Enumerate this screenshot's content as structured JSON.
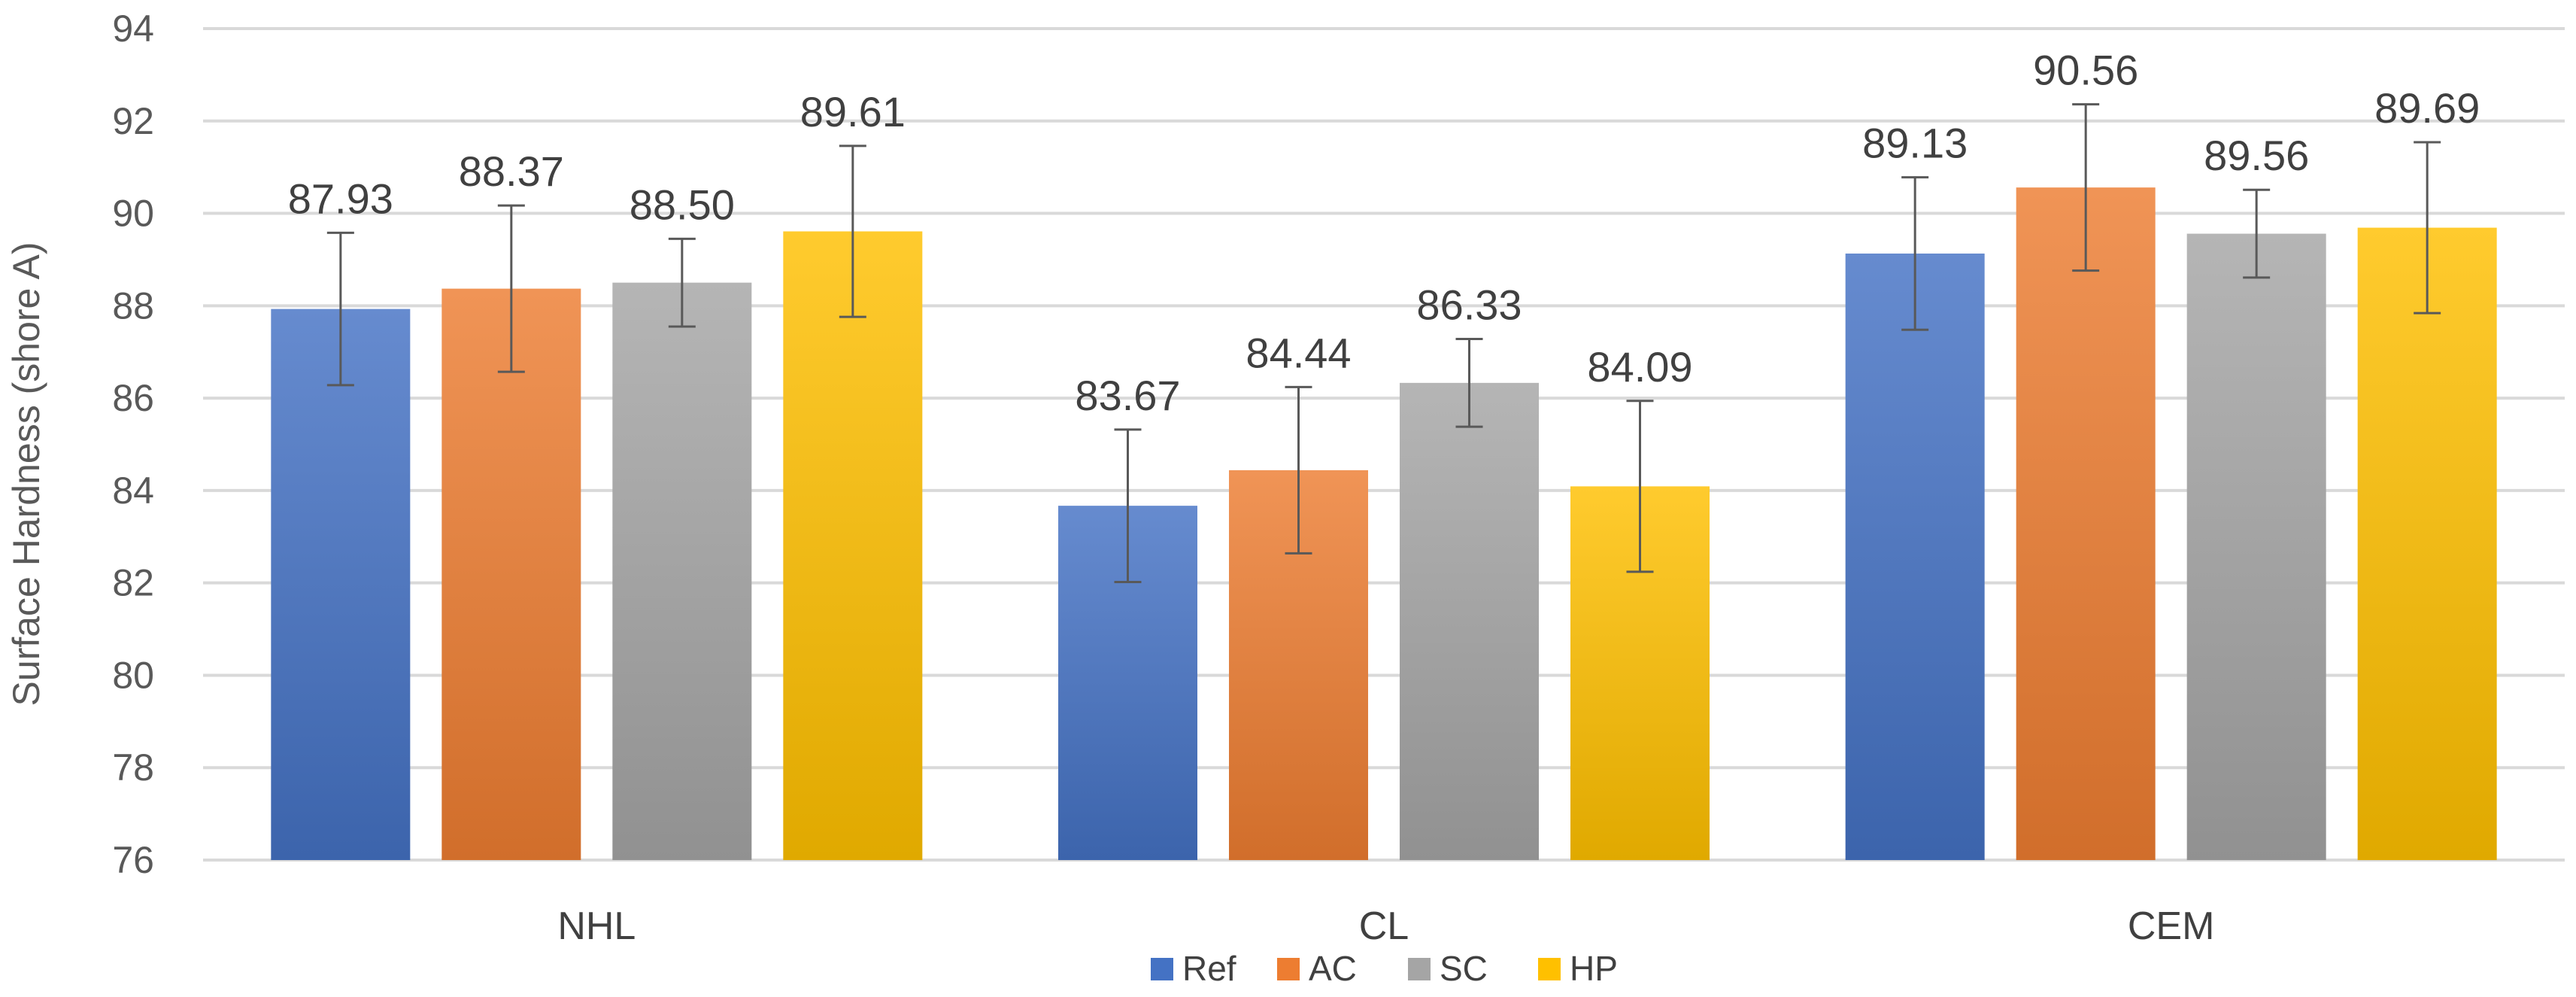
{
  "chart_data": {
    "type": "bar",
    "categories": [
      "NHL",
      "CL",
      "CEM"
    ],
    "series": [
      {
        "name": "Ref",
        "values": [
          87.93,
          83.67,
          89.13
        ],
        "errors": [
          1.65,
          1.65,
          1.65
        ],
        "color": "#4472C4"
      },
      {
        "name": "AC",
        "values": [
          88.37,
          84.44,
          90.56
        ],
        "errors": [
          1.8,
          1.8,
          1.8
        ],
        "color": "#ED7D31"
      },
      {
        "name": "SC",
        "values": [
          88.5,
          86.33,
          89.56
        ],
        "errors": [
          0.95,
          0.95,
          0.95
        ],
        "color": "#A5A5A5"
      },
      {
        "name": "HP",
        "values": [
          89.61,
          84.09,
          89.69
        ],
        "errors": [
          1.85,
          1.85,
          1.85
        ],
        "color": "#FFC000"
      }
    ],
    "data_labels": [
      [
        "87.93",
        "83.67",
        "89.13"
      ],
      [
        "88.37",
        "84.44",
        "90.56"
      ],
      [
        "88.50",
        "86.33",
        "89.56"
      ],
      [
        "89.61",
        "84.09",
        "89.69"
      ]
    ],
    "ylabel": "Surface Hardness (shore A)",
    "ylim": [
      76,
      94
    ],
    "yticks": [
      "76",
      "78",
      "80",
      "82",
      "84",
      "86",
      "88",
      "90",
      "92",
      "94"
    ],
    "grid": true,
    "legend_position": "bottom"
  }
}
